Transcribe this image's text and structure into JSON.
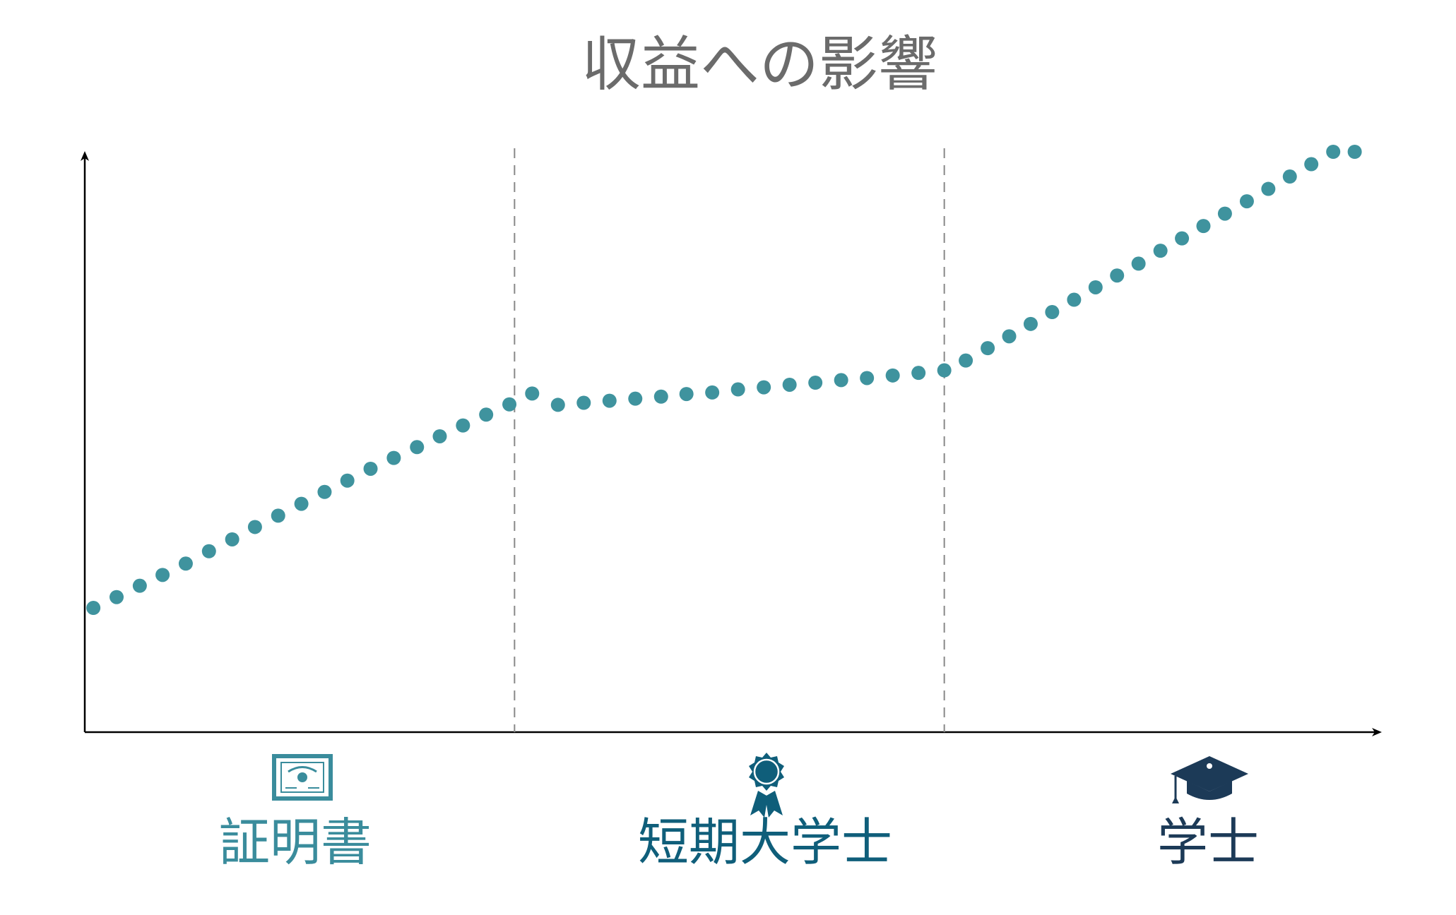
{
  "chart_data": {
    "type": "scatter",
    "title": "収益への影響",
    "xlabel": "",
    "ylabel": "",
    "xlim": [
      0,
      3
    ],
    "ylim": [
      0,
      100
    ],
    "grid": false,
    "categories": [
      {
        "label": "証明書",
        "icon": "certificate-icon",
        "color": "#3a8c9c"
      },
      {
        "label": "短期大学士",
        "icon": "award-ribbon-icon",
        "color": "#0f5e7a"
      },
      {
        "label": "学士",
        "icon": "graduation-cap-icon",
        "color": "#1c3a57"
      }
    ],
    "dividers": [
      1,
      2
    ],
    "point_color": "#3f939e",
    "series": [
      {
        "x": [
          0.02,
          0.074,
          0.128,
          0.181,
          0.235,
          0.289,
          0.343,
          0.396,
          0.45,
          0.504,
          0.558,
          0.611,
          0.665,
          0.719,
          0.773,
          0.826,
          0.88,
          0.934,
          0.988,
          1.041,
          1.101,
          1.161,
          1.221,
          1.281,
          1.341,
          1.4,
          1.46,
          1.52,
          1.58,
          1.64,
          1.7,
          1.76,
          1.82,
          1.88,
          1.94,
          2.0,
          2.05,
          2.101,
          2.151,
          2.201,
          2.251,
          2.302,
          2.352,
          2.402,
          2.452,
          2.503,
          2.553,
          2.603,
          2.653,
          2.704,
          2.754,
          2.804,
          2.854,
          2.905,
          2.955
        ],
        "y": [
          11.5,
          13.6,
          15.8,
          17.9,
          20.1,
          22.5,
          24.8,
          27.2,
          29.4,
          31.7,
          34.0,
          36.2,
          38.5,
          40.6,
          42.7,
          44.8,
          46.9,
          49.0,
          51.0,
          53.1,
          50.9,
          51.3,
          51.7,
          52.1,
          52.5,
          53.0,
          53.3,
          53.9,
          54.3,
          54.8,
          55.2,
          55.7,
          56.1,
          56.6,
          57.1,
          57.6,
          59.5,
          61.9,
          64.2,
          66.6,
          68.9,
          71.3,
          73.7,
          76.0,
          78.3,
          80.8,
          83.2,
          85.6,
          88.0,
          90.4,
          92.8,
          95.2,
          97.6,
          100,
          100
        ]
      }
    ]
  }
}
